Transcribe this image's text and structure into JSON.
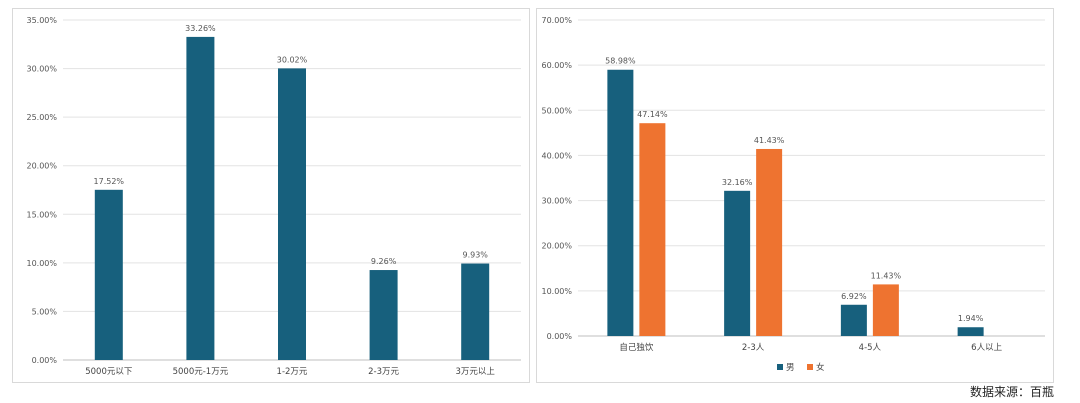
{
  "chart_data": [
    {
      "type": "bar",
      "categories": [
        "5000元以下",
        "5000元-1万元",
        "1-2万元",
        "2-3万元",
        "3万元以上"
      ],
      "values": [
        17.52,
        33.26,
        30.02,
        9.26,
        9.93
      ],
      "value_labels": [
        "17.52%",
        "33.26%",
        "30.02%",
        "9.26%",
        "9.93%"
      ],
      "ylim": [
        0,
        35
      ],
      "yticks": [
        0,
        5,
        10,
        15,
        20,
        25,
        30,
        35
      ],
      "ytick_labels": [
        "0.00%",
        "5.00%",
        "10.00%",
        "15.00%",
        "20.00%",
        "25.00%",
        "30.00%",
        "35.00%"
      ],
      "grid": true,
      "color": "#17607d"
    },
    {
      "type": "bar",
      "categories": [
        "自己独饮",
        "2-3人",
        "4-5人",
        "6人以上"
      ],
      "series": [
        {
          "name": "男",
          "values": [
            58.98,
            32.16,
            6.92,
            1.94
          ],
          "value_labels": [
            "58.98%",
            "32.16%",
            "6.92%",
            "1.94%"
          ],
          "color": "#17607d"
        },
        {
          "name": "女",
          "values": [
            47.14,
            41.43,
            11.43,
            null
          ],
          "value_labels": [
            "47.14%",
            "41.43%",
            "11.43%",
            ""
          ],
          "color": "#ee7330"
        }
      ],
      "ylim": [
        0,
        70
      ],
      "yticks": [
        0,
        10,
        20,
        30,
        40,
        50,
        60,
        70
      ],
      "ytick_labels": [
        "0.00%",
        "10.00%",
        "20.00%",
        "30.00%",
        "40.00%",
        "50.00%",
        "60.00%",
        "70.00%"
      ],
      "grid": true,
      "legend": "bottom"
    }
  ],
  "source": "数据来源：百瓶"
}
